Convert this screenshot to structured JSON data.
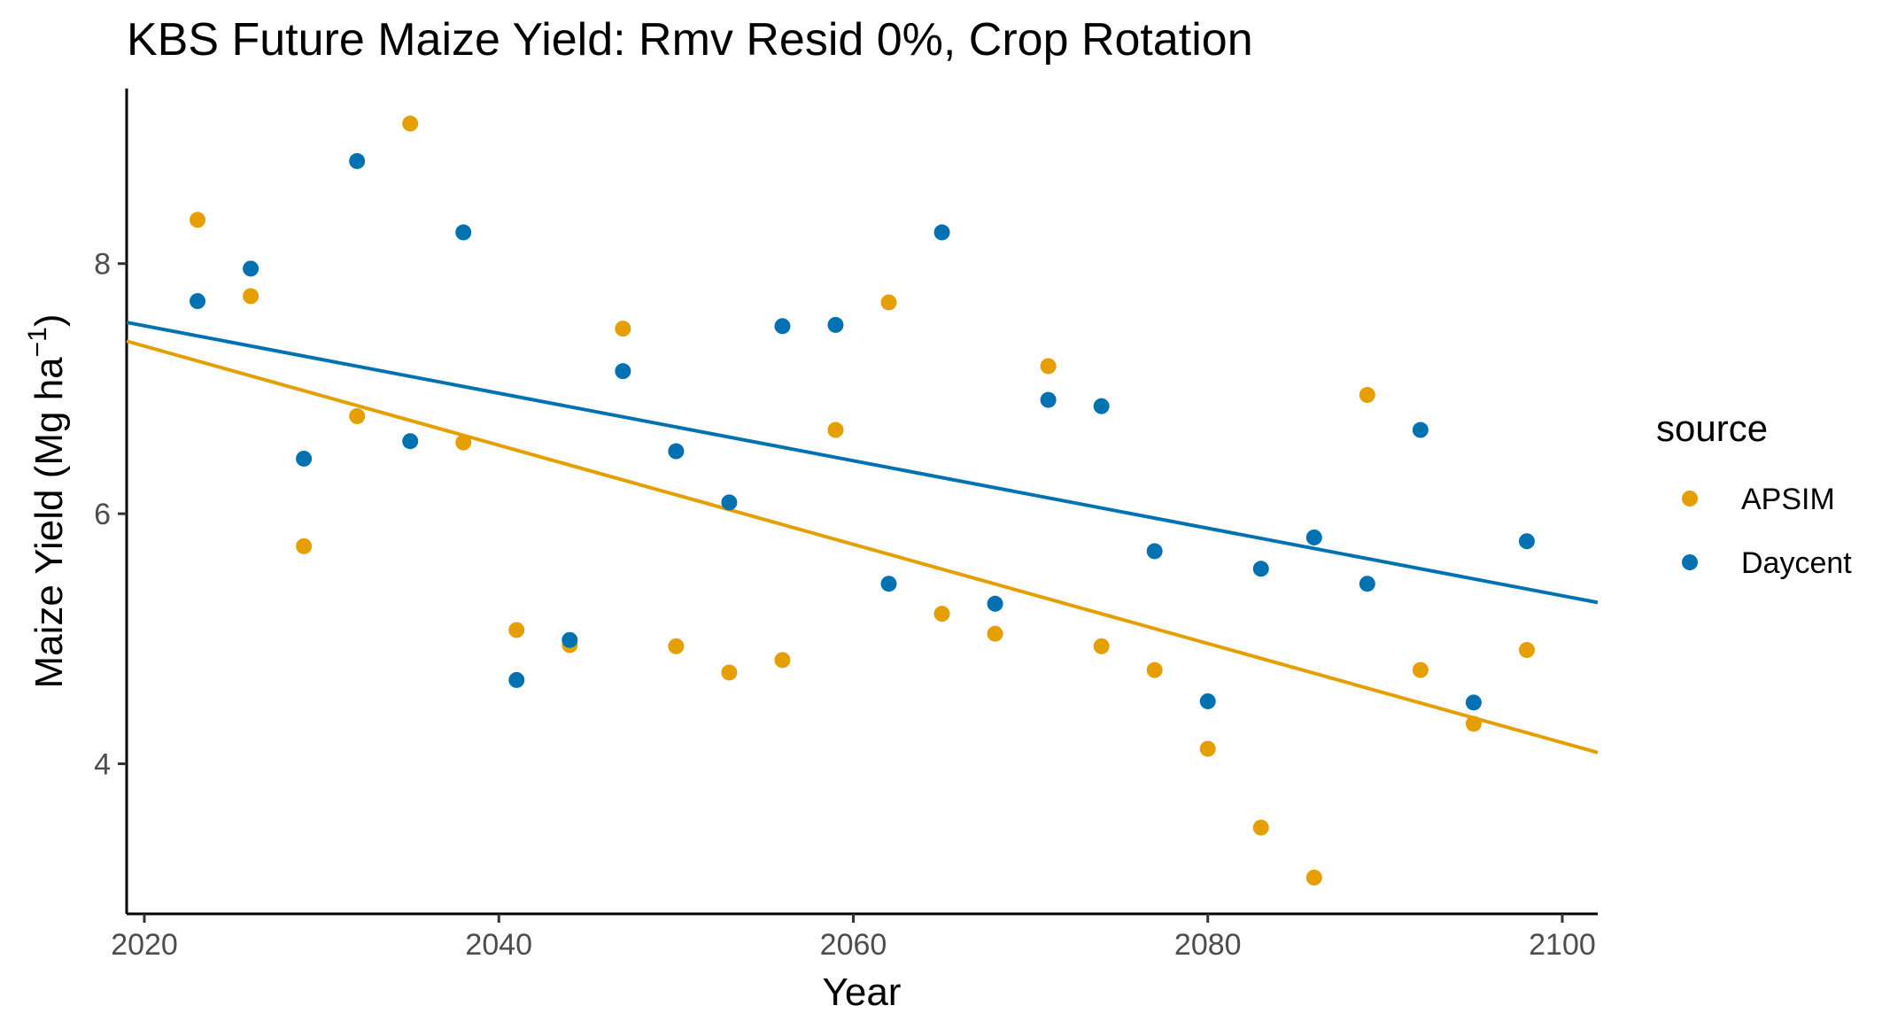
{
  "chart_data": {
    "type": "scatter",
    "title": "KBS Future Maize Yield:  Rmv Resid 0%, Crop Rotation",
    "xlabel": "Year",
    "ylabel": "Maize Yield (Mg ha",
    "ylabel_superscript": "−1",
    "ylabel_close": ")",
    "xlim": [
      2019,
      2102
    ],
    "ylim": [
      2.8,
      9.4
    ],
    "x_ticks": [
      2020,
      2040,
      2060,
      2080,
      2100
    ],
    "y_ticks": [
      4,
      6,
      8
    ],
    "grid": false,
    "legend": {
      "title": "source",
      "placement": "right"
    },
    "series": [
      {
        "name": "APSIM",
        "color": "#E69F00",
        "x": [
          2023,
          2026,
          2029,
          2032,
          2035,
          2038,
          2041,
          2044,
          2047,
          2050,
          2053,
          2056,
          2059,
          2062,
          2065,
          2068,
          2071,
          2074,
          2077,
          2080,
          2083,
          2086,
          2089,
          2092,
          2095,
          2098
        ],
        "y": [
          8.35,
          7.74,
          5.74,
          6.78,
          9.12,
          6.57,
          5.07,
          4.95,
          7.48,
          4.94,
          4.73,
          4.83,
          6.67,
          7.69,
          5.2,
          5.04,
          7.18,
          4.94,
          4.75,
          4.12,
          3.49,
          3.09,
          6.95,
          4.75,
          4.32,
          4.91
        ],
        "trend": {
          "x": [
            2019,
            2102
          ],
          "y": [
            7.38,
            4.09
          ]
        }
      },
      {
        "name": "Daycent",
        "color": "#0072B2",
        "x": [
          2023,
          2026,
          2029,
          2032,
          2035,
          2038,
          2041,
          2044,
          2047,
          2050,
          2053,
          2056,
          2059,
          2062,
          2065,
          2068,
          2071,
          2074,
          2077,
          2080,
          2083,
          2086,
          2089,
          2092,
          2095,
          2098
        ],
        "y": [
          7.7,
          7.96,
          6.44,
          8.82,
          6.58,
          8.25,
          4.67,
          4.99,
          7.14,
          6.5,
          6.09,
          7.5,
          7.51,
          5.44,
          8.25,
          5.28,
          6.91,
          6.86,
          5.7,
          4.5,
          5.56,
          5.81,
          5.44,
          6.67,
          4.49,
          5.78
        ],
        "trend": {
          "x": [
            2019,
            2102
          ],
          "y": [
            7.53,
            5.29
          ]
        }
      }
    ]
  }
}
